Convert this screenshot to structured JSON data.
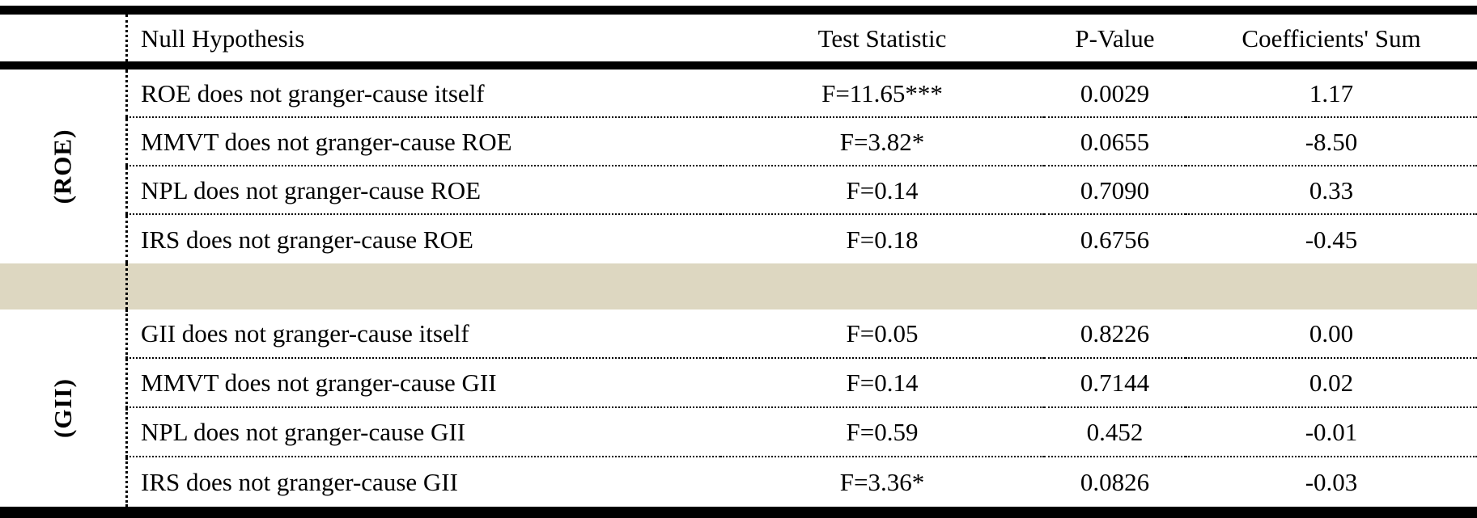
{
  "table": {
    "columns": {
      "hypothesis": "Null Hypothesis",
      "test_statistic": "Test Statistic",
      "p_value": "P-Value",
      "coefficients_sum": "Coefficients' Sum"
    },
    "groups": [
      {
        "label": "(ROE)",
        "rows": [
          {
            "hypothesis": "ROE does not granger-cause itself",
            "test_statistic": "F=11.65***",
            "p_value": "0.0029",
            "coefficients_sum": "1.17"
          },
          {
            "hypothesis": "MMVT does not granger-cause ROE",
            "test_statistic": "F=3.82*",
            "p_value": "0.0655",
            "coefficients_sum": "-8.50"
          },
          {
            "hypothesis": "NPL does not granger-cause ROE",
            "test_statistic": "F=0.14",
            "p_value": "0.7090",
            "coefficients_sum": "0.33"
          },
          {
            "hypothesis": "IRS does not granger-cause ROE",
            "test_statistic": "F=0.18",
            "p_value": "0.6756",
            "coefficients_sum": "-0.45"
          }
        ]
      },
      {
        "label": "(GII)",
        "rows": [
          {
            "hypothesis": "GII does not granger-cause itself",
            "test_statistic": "F=0.05",
            "p_value": "0.8226",
            "coefficients_sum": "0.00"
          },
          {
            "hypothesis": "MMVT does not granger-cause GII",
            "test_statistic": "F=0.14",
            "p_value": "0.7144",
            "coefficients_sum": "0.02"
          },
          {
            "hypothesis": "NPL does not granger-cause GII",
            "test_statistic": "F=0.59",
            "p_value": "0.452",
            "coefficients_sum": "-0.01"
          },
          {
            "hypothesis": "IRS does not granger-cause GII",
            "test_statistic": "F=3.36*",
            "p_value": "0.0826",
            "coefficients_sum": "-0.03"
          }
        ]
      }
    ]
  },
  "colors": {
    "separator_band": "#ddd7c1",
    "border": "#000000",
    "background": "#ffffff"
  }
}
